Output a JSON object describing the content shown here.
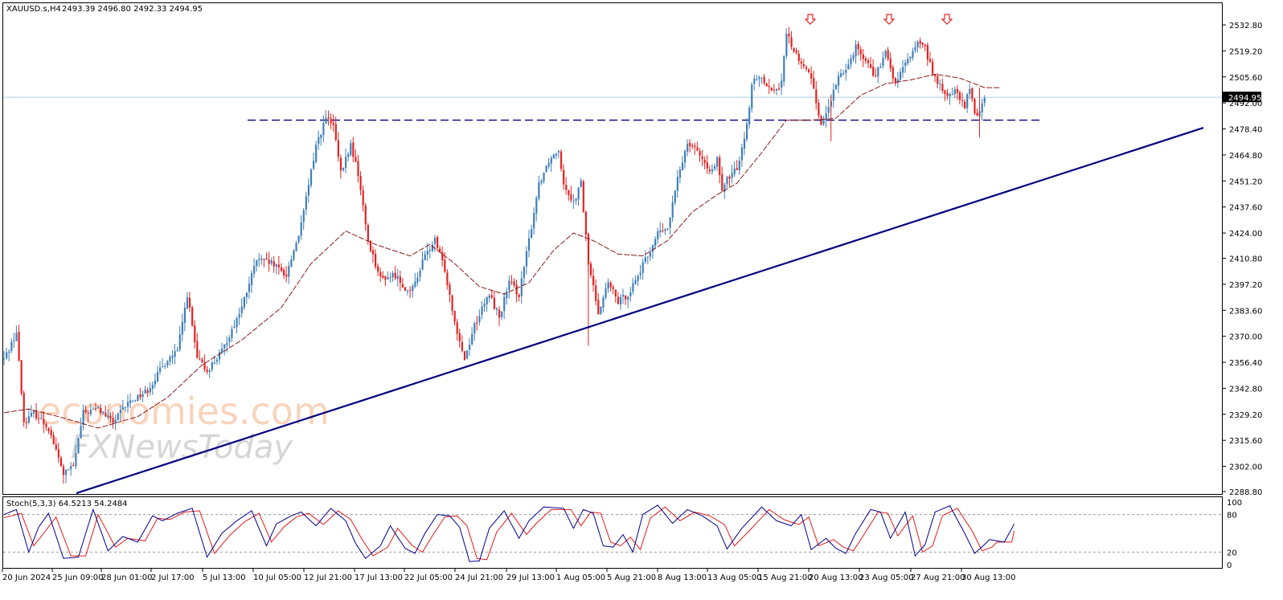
{
  "header": {
    "symbol": "XAUUSD.s,H4",
    "ohlc": "2493.39 2496.80 2492.33 2494.95"
  },
  "stoch": {
    "label": "Stoch(5,3,3) 64.5213 54.2484",
    "levels": [
      "100",
      "80",
      "20",
      "0"
    ]
  },
  "watermark": {
    "line1": "economies.com",
    "line2": "FXNewsToday"
  },
  "colors": {
    "bull": "#3f7fb8",
    "bear": "#e32222",
    "ma": "#8b1a1a",
    "trendline": "#000080",
    "resistance": "#000080",
    "price_line": "#a8cfe0",
    "stoch_main": "#00008b",
    "stoch_signal": "#e31b1b",
    "current_price_bg": "#000000"
  },
  "chart_data": {
    "type": "candlestick",
    "timeframe": "H4",
    "x_ticks": [
      "20 Jun 2024",
      "25 Jun 09:00",
      "28 Jun 01:00",
      "2 Jul 17:00",
      "5 Jul 13:00",
      "10 Jul 05:00",
      "12 Jul 21:00",
      "17 Jul 13:00",
      "22 Jul 05:00",
      "24 Jul 21:00",
      "29 Jul 13:00",
      "1 Aug 05:00",
      "5 Aug 21:00",
      "8 Aug 13:00",
      "13 Aug 05:00",
      "15 Aug 21:00",
      "20 Aug 13:00",
      "23 Aug 05:00",
      "27 Aug 21:00",
      "30 Aug 13:00"
    ],
    "y_ticks": [
      "2532.80",
      "2519.20",
      "2505.60",
      "2492.00",
      "2478.40",
      "2464.80",
      "2451.20",
      "2437.60",
      "2424.00",
      "2410.80",
      "2397.20",
      "2383.60",
      "2370.00",
      "2356.40",
      "2342.80",
      "2329.20",
      "2315.60",
      "2302.00",
      "2288.80"
    ],
    "ylim": [
      2288.8,
      2532.8
    ],
    "current_price": "2494.95",
    "resistance_level": 2483,
    "trendline": {
      "start": 2288.8,
      "end": 2479
    },
    "series": [
      {
        "name": "Price",
        "anchors": [
          [
            0,
            2358
          ],
          [
            5,
            2372
          ],
          [
            8,
            2325
          ],
          [
            12,
            2330
          ],
          [
            18,
            2322
          ],
          [
            24,
            2298
          ],
          [
            28,
            2302
          ],
          [
            32,
            2330
          ],
          [
            38,
            2332
          ],
          [
            44,
            2325
          ],
          [
            50,
            2335
          ],
          [
            58,
            2342
          ],
          [
            66,
            2358
          ],
          [
            70,
            2362
          ],
          [
            74,
            2392
          ],
          [
            78,
            2358
          ],
          [
            82,
            2352
          ],
          [
            88,
            2362
          ],
          [
            96,
            2385
          ],
          [
            102,
            2410
          ],
          [
            108,
            2408
          ],
          [
            114,
            2402
          ],
          [
            120,
            2428
          ],
          [
            126,
            2470
          ],
          [
            130,
            2484
          ],
          [
            133,
            2480
          ],
          [
            136,
            2455
          ],
          [
            140,
            2470
          ],
          [
            143,
            2455
          ],
          [
            147,
            2420
          ],
          [
            152,
            2400
          ],
          [
            158,
            2402
          ],
          [
            164,
            2392
          ],
          [
            170,
            2412
          ],
          [
            174,
            2420
          ],
          [
            178,
            2405
          ],
          [
            182,
            2378
          ],
          [
            186,
            2358
          ],
          [
            190,
            2376
          ],
          [
            196,
            2392
          ],
          [
            200,
            2380
          ],
          [
            204,
            2398
          ],
          [
            208,
            2392
          ],
          [
            212,
            2420
          ],
          [
            216,
            2450
          ],
          [
            220,
            2462
          ],
          [
            224,
            2468
          ],
          [
            226,
            2450
          ],
          [
            230,
            2440
          ],
          [
            233,
            2450
          ],
          [
            236,
            2408
          ],
          [
            240,
            2383
          ],
          [
            244,
            2398
          ],
          [
            248,
            2388
          ],
          [
            252,
            2392
          ],
          [
            256,
            2402
          ],
          [
            260,
            2412
          ],
          [
            264,
            2424
          ],
          [
            268,
            2426
          ],
          [
            272,
            2452
          ],
          [
            276,
            2472
          ],
          [
            280,
            2468
          ],
          [
            284,
            2456
          ],
          [
            288,
            2462
          ],
          [
            290,
            2445
          ],
          [
            292,
            2452
          ],
          [
            296,
            2458
          ],
          [
            300,
            2480
          ],
          [
            302,
            2502
          ],
          [
            306,
            2506
          ],
          [
            310,
            2498
          ],
          [
            314,
            2502
          ],
          [
            316,
            2529
          ],
          [
            318,
            2522
          ],
          [
            322,
            2512
          ],
          [
            326,
            2506
          ],
          [
            330,
            2480
          ],
          [
            334,
            2494
          ],
          [
            338,
            2508
          ],
          [
            341,
            2512
          ],
          [
            344,
            2522
          ],
          [
            348,
            2514
          ],
          [
            352,
            2506
          ],
          [
            356,
            2518
          ],
          [
            360,
            2502
          ],
          [
            364,
            2512
          ],
          [
            368,
            2522
          ],
          [
            370,
            2524
          ],
          [
            372,
            2520
          ],
          [
            376,
            2505
          ],
          [
            380,
            2496
          ],
          [
            384,
            2498
          ],
          [
            388,
            2490
          ],
          [
            390,
            2500
          ],
          [
            392,
            2486
          ],
          [
            394,
            2488
          ],
          [
            396,
            2495
          ]
        ]
      },
      {
        "name": "MA",
        "anchors": [
          [
            0,
            2330
          ],
          [
            10,
            2332
          ],
          [
            22,
            2328
          ],
          [
            38,
            2322
          ],
          [
            54,
            2328
          ],
          [
            66,
            2338
          ],
          [
            80,
            2355
          ],
          [
            96,
            2368
          ],
          [
            112,
            2385
          ],
          [
            124,
            2408
          ],
          [
            138,
            2425
          ],
          [
            150,
            2418
          ],
          [
            164,
            2412
          ],
          [
            172,
            2418
          ],
          [
            182,
            2408
          ],
          [
            192,
            2396
          ],
          [
            202,
            2392
          ],
          [
            212,
            2398
          ],
          [
            222,
            2415
          ],
          [
            230,
            2424
          ],
          [
            238,
            2420
          ],
          [
            248,
            2413
          ],
          [
            258,
            2412
          ],
          [
            268,
            2420
          ],
          [
            278,
            2435
          ],
          [
            288,
            2444
          ],
          [
            296,
            2450
          ],
          [
            306,
            2466
          ],
          [
            316,
            2483
          ],
          [
            326,
            2483
          ],
          [
            336,
            2484
          ],
          [
            346,
            2496
          ],
          [
            356,
            2502
          ],
          [
            366,
            2504
          ],
          [
            376,
            2507
          ],
          [
            386,
            2505
          ],
          [
            396,
            2500
          ]
        ]
      },
      {
        "name": "Stoch",
        "anchors": [
          [
            0,
            80
          ],
          [
            5,
            88
          ],
          [
            10,
            20
          ],
          [
            14,
            60
          ],
          [
            18,
            82
          ],
          [
            24,
            10
          ],
          [
            30,
            12
          ],
          [
            36,
            88
          ],
          [
            42,
            22
          ],
          [
            48,
            45
          ],
          [
            54,
            36
          ],
          [
            60,
            78
          ],
          [
            64,
            70
          ],
          [
            70,
            82
          ],
          [
            76,
            90
          ],
          [
            82,
            12
          ],
          [
            88,
            50
          ],
          [
            94,
            70
          ],
          [
            100,
            86
          ],
          [
            106,
            30
          ],
          [
            110,
            65
          ],
          [
            116,
            78
          ],
          [
            120,
            84
          ],
          [
            126,
            62
          ],
          [
            132,
            90
          ],
          [
            138,
            70
          ],
          [
            142,
            34
          ],
          [
            146,
            10
          ],
          [
            152,
            30
          ],
          [
            156,
            62
          ],
          [
            162,
            26
          ],
          [
            166,
            18
          ],
          [
            170,
            50
          ],
          [
            175,
            80
          ],
          [
            180,
            78
          ],
          [
            184,
            60
          ],
          [
            188,
            5
          ],
          [
            192,
            6
          ],
          [
            196,
            58
          ],
          [
            202,
            86
          ],
          [
            208,
            42
          ],
          [
            212,
            70
          ],
          [
            218,
            92
          ],
          [
            226,
            90
          ],
          [
            230,
            58
          ],
          [
            234,
            88
          ],
          [
            238,
            82
          ],
          [
            242,
            30
          ],
          [
            246,
            28
          ],
          [
            250,
            48
          ],
          [
            254,
            20
          ],
          [
            258,
            80
          ],
          [
            264,
            95
          ],
          [
            270,
            66
          ],
          [
            276,
            88
          ],
          [
            282,
            78
          ],
          [
            288,
            62
          ],
          [
            292,
            25
          ],
          [
            298,
            58
          ],
          [
            306,
            92
          ],
          [
            312,
            70
          ],
          [
            318,
            62
          ],
          [
            322,
            80
          ],
          [
            326,
            24
          ],
          [
            332,
            42
          ],
          [
            336,
            26
          ],
          [
            340,
            18
          ],
          [
            344,
            50
          ],
          [
            350,
            88
          ],
          [
            354,
            84
          ],
          [
            358,
            42
          ],
          [
            364,
            84
          ],
          [
            368,
            14
          ],
          [
            372,
            32
          ],
          [
            376,
            84
          ],
          [
            382,
            94
          ],
          [
            388,
            50
          ],
          [
            392,
            18
          ],
          [
            396,
            32
          ],
          [
            398,
            40
          ],
          [
            404,
            36
          ],
          [
            408,
            65
          ]
        ]
      },
      {
        "name": "Signal",
        "anchors": [
          [
            0,
            75
          ],
          [
            7,
            82
          ],
          [
            12,
            30
          ],
          [
            16,
            50
          ],
          [
            21,
            76
          ],
          [
            27,
            14
          ],
          [
            33,
            14
          ],
          [
            38,
            80
          ],
          [
            45,
            28
          ],
          [
            50,
            42
          ],
          [
            57,
            38
          ],
          [
            62,
            74
          ],
          [
            67,
            72
          ],
          [
            73,
            84
          ],
          [
            79,
            86
          ],
          [
            85,
            18
          ],
          [
            91,
            46
          ],
          [
            97,
            68
          ],
          [
            103,
            82
          ],
          [
            108,
            36
          ],
          [
            113,
            60
          ],
          [
            118,
            76
          ],
          [
            123,
            82
          ],
          [
            129,
            64
          ],
          [
            135,
            86
          ],
          [
            140,
            72
          ],
          [
            145,
            38
          ],
          [
            149,
            14
          ],
          [
            155,
            28
          ],
          [
            159,
            58
          ],
          [
            165,
            30
          ],
          [
            169,
            20
          ],
          [
            173,
            46
          ],
          [
            178,
            76
          ],
          [
            183,
            78
          ],
          [
            187,
            62
          ],
          [
            191,
            10
          ],
          [
            195,
            8
          ],
          [
            199,
            52
          ],
          [
            205,
            82
          ],
          [
            211,
            48
          ],
          [
            215,
            66
          ],
          [
            221,
            88
          ],
          [
            229,
            88
          ],
          [
            233,
            62
          ],
          [
            237,
            84
          ],
          [
            241,
            82
          ],
          [
            245,
            36
          ],
          [
            249,
            30
          ],
          [
            253,
            44
          ],
          [
            257,
            24
          ],
          [
            261,
            74
          ],
          [
            267,
            92
          ],
          [
            273,
            70
          ],
          [
            279,
            84
          ],
          [
            285,
            78
          ],
          [
            291,
            64
          ],
          [
            295,
            30
          ],
          [
            301,
            54
          ],
          [
            309,
            88
          ],
          [
            315,
            72
          ],
          [
            321,
            64
          ],
          [
            325,
            76
          ],
          [
            329,
            30
          ],
          [
            335,
            40
          ],
          [
            339,
            28
          ],
          [
            343,
            22
          ],
          [
            347,
            46
          ],
          [
            353,
            84
          ],
          [
            357,
            82
          ],
          [
            361,
            46
          ],
          [
            367,
            78
          ],
          [
            371,
            20
          ],
          [
            375,
            30
          ],
          [
            379,
            78
          ],
          [
            385,
            90
          ],
          [
            391,
            54
          ],
          [
            395,
            22
          ],
          [
            399,
            28
          ],
          [
            401,
            36
          ],
          [
            407,
            36
          ],
          [
            408,
            54
          ]
        ]
      }
    ]
  }
}
